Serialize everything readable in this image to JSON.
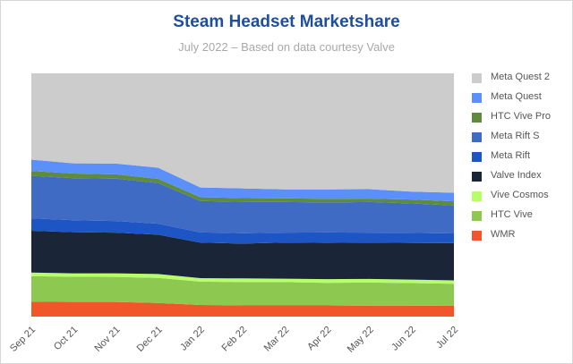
{
  "chart_data": {
    "type": "area",
    "stacked": true,
    "normalized": true,
    "title": "Steam Headset Marketshare",
    "subtitle": "July 2022 – Based on data courtesy Valve",
    "xlabel": "",
    "ylabel": "",
    "ylim": [
      0,
      100
    ],
    "grid": false,
    "legend_position": "right",
    "categories": [
      "Sep 21",
      "Oct 21",
      "Nov 21",
      "Dec 21",
      "Jan 22",
      "Feb 22",
      "Mar 22",
      "Apr 22",
      "May 22",
      "Jun 22",
      "Jul 22"
    ],
    "series": [
      {
        "name": "WMR",
        "color": "#f0562a",
        "values": [
          6.1,
          6.0,
          6.0,
          5.6,
          4.8,
          4.6,
          4.6,
          4.6,
          4.5,
          4.5,
          4.4
        ]
      },
      {
        "name": "HTC Vive",
        "color": "#8dc850",
        "values": [
          10.5,
          10.4,
          10.3,
          10.3,
          9.6,
          9.6,
          9.6,
          9.3,
          9.5,
          9.3,
          9.1
        ]
      },
      {
        "name": "Vive Cosmos",
        "color": "#b6ff6a",
        "values": [
          1.5,
          1.4,
          1.5,
          1.6,
          1.4,
          1.5,
          1.4,
          1.5,
          1.5,
          1.4,
          1.4
        ]
      },
      {
        "name": "Valve Index",
        "color": "#1a2638",
        "values": [
          17.2,
          16.9,
          16.7,
          16.2,
          14.6,
          14.3,
          14.8,
          14.9,
          14.9,
          15.1,
          15.3
        ]
      },
      {
        "name": "Meta Rift",
        "color": "#1d55c5",
        "values": [
          5.1,
          4.9,
          4.8,
          4.5,
          4.2,
          4.3,
          4.1,
          4.3,
          4.1,
          4.1,
          4.0
        ]
      },
      {
        "name": "Meta Rift S",
        "color": "#3f6bc5",
        "values": [
          17.5,
          17.3,
          17.4,
          16.7,
          12.9,
          12.9,
          12.6,
          12.3,
          12.6,
          12.1,
          11.5
        ]
      },
      {
        "name": "HTC Vive Pro",
        "color": "#5e8c3c",
        "values": [
          2.0,
          1.9,
          1.8,
          1.7,
          1.6,
          1.5,
          1.5,
          1.5,
          1.4,
          1.6,
          1.7
        ]
      },
      {
        "name": "Meta Quest",
        "color": "#5b8ffa",
        "values": [
          4.6,
          4.2,
          4.4,
          4.6,
          4.0,
          4.0,
          3.7,
          3.9,
          3.9,
          3.3,
          3.5
        ]
      },
      {
        "name": "Meta Quest 2",
        "color": "#cccccc",
        "values": [
          35.5,
          37.0,
          37.1,
          38.8,
          46.9,
          47.3,
          47.7,
          47.7,
          47.6,
          48.6,
          49.1
        ]
      }
    ]
  }
}
